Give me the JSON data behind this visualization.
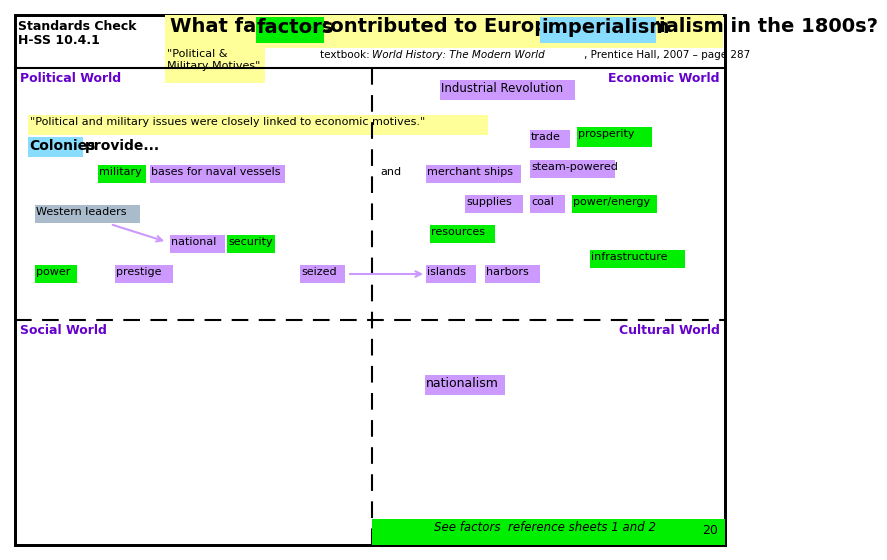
{
  "title_bg": "#ffff99",
  "green_hi": "#00ee00",
  "cyan_hi": "#88ddff",
  "purple_hi": "#cc99ff",
  "purple_text": "#6600cc",
  "standards_check": "Standards Check",
  "hss": "H-SS 10.4.1",
  "textbook_normal": "textbook: ",
  "textbook_italic": "World History: The Modern World",
  "textbook_rest": ", Prentice Hall, 2007 – page 287",
  "political_motives": "\"Political &\nMilitary Motives\"",
  "quote_text": "\"Political and military issues were closely linked to economic motives.\"",
  "see_factors": "See factors  reference sheets 1 and 2",
  "page_num": "20",
  "bg_color": "white",
  "border_color": "black",
  "arrow_color": "#cc99ff"
}
